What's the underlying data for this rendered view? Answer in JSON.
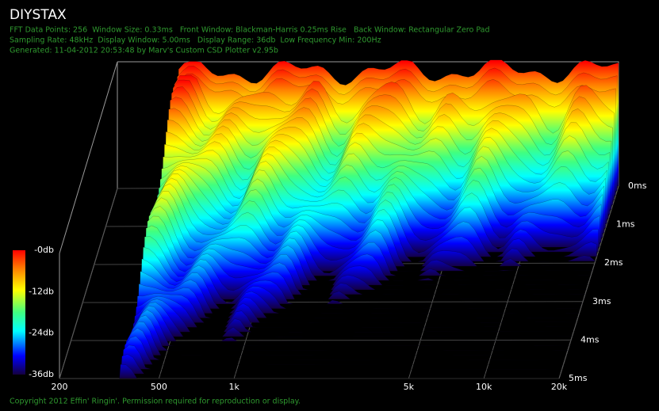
{
  "chart_data": {
    "type": "waterfall",
    "title": "DIYSTAX",
    "subtitle": [
      "FFT Data Points: 256  Window Size: 0.33ms   Front Window: Blackman-Harris 0.25ms Rise   Back Window: Rectangular Zero Pad",
      "Sampling Rate: 48kHz  Display Window: 5.00ms   Display Range: 36db  Low Frequency Min: 200Hz",
      "Generated: 11-04-2012 20:53:48 by Marv's Custom CSD Plotter v2.95b"
    ],
    "footer": "Copyright 2012 Effin' Ringin'. Permission required for reproduction or display.",
    "xlim": [
      200,
      20000
    ],
    "xticks": [
      200,
      500,
      {
        "value": 1000,
        "label": "1k"
      },
      {
        "value": 5000,
        "label": "5k"
      },
      {
        "value": 10000,
        "label": "10k"
      },
      {
        "value": 20000,
        "label": "20k"
      }
    ],
    "x_log": true,
    "tlim": [
      0,
      5
    ],
    "tticks": [
      {
        "value": 0,
        "label": "0ms"
      },
      {
        "value": 1,
        "label": "1ms"
      },
      {
        "value": 2,
        "label": "2ms"
      },
      {
        "value": 3,
        "label": "3ms"
      },
      {
        "value": 4,
        "label": "4ms"
      },
      {
        "value": 5,
        "label": "5ms"
      }
    ],
    "zlim": [
      -36,
      0
    ],
    "zticks": [
      {
        "value": 0,
        "label": "-0db"
      },
      {
        "value": -12,
        "label": "-12db"
      },
      {
        "value": -24,
        "label": "-24db"
      },
      {
        "value": -36,
        "label": "-36db"
      }
    ],
    "grid": true
  }
}
